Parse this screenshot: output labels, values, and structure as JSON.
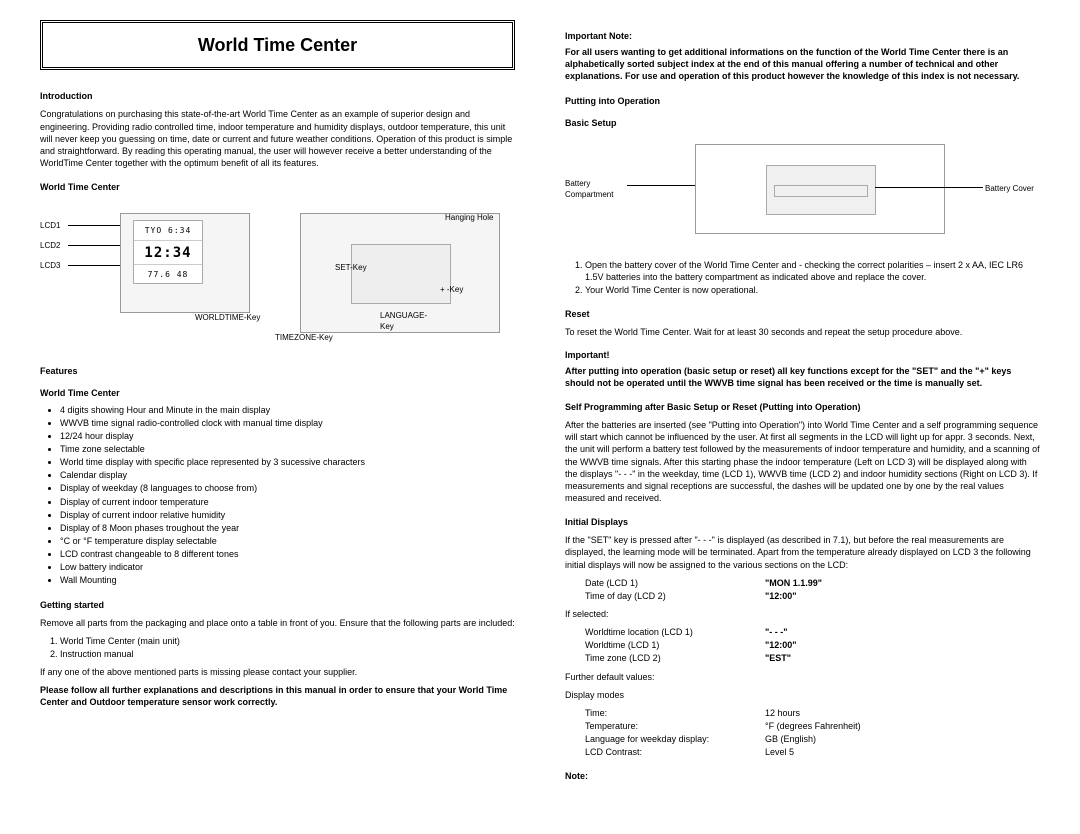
{
  "title": "World Time Center",
  "intro": {
    "h": "Introduction",
    "p": "Congratulations on purchasing this state-of-the-art World Time Center as an example of superior design and engineering. Providing radio controlled time, indoor temperature and humidity displays, outdoor temperature, this unit will never keep you guessing on time, date or current and future weather conditions. Operation of this product is simple and straightforward. By reading this operating manual, the user will however receive a better understanding of the WorldTime Center together with the optimum benefit of all its features."
  },
  "wtc_h": "World Time Center",
  "diagram": {
    "lcd1": "LCD1",
    "lcd2": "LCD2",
    "lcd3": "LCD3",
    "wtk": "WORLDTIME-Key",
    "tzk": "TIMEZONE-Key",
    "setk": "SET-Key",
    "langk": "LANGUAGE-\nKey",
    "plusk": "+ -Key",
    "hang": "Hanging Hole",
    "lcd_tyo": "TYO 6:34",
    "lcd_time": "12:34",
    "lcd_bot": "77.6  48"
  },
  "features": {
    "h": "Features",
    "sh": "World Time Center",
    "items": [
      "4 digits showing Hour and Minute in the main display",
      "WWVB time signal radio-controlled clock with manual time display",
      "12/24 hour display",
      "Time zone selectable",
      "World time display with specific place represented by 3 sucessive characters",
      "Calendar display",
      "Display of weekday (8 languages to choose from)",
      "Display of current indoor temperature",
      "Display of current indoor relative humidity",
      "Display of 8 Moon phases troughout the year",
      "°C or °F temperature display selectable",
      "LCD contrast changeable to 8 different tones",
      "Low battery indicator",
      "Wall Mounting"
    ]
  },
  "getting": {
    "h": "Getting started",
    "p1": "Remove all parts from the packaging and place onto a table in front of you. Ensure that the following parts are included:",
    "list": [
      "World Time Center (main unit)",
      "Instruction manual"
    ],
    "p2": "If any one of the above mentioned parts is missing please contact your supplier.",
    "p3": "Please follow all further explanations and descriptions in this manual in order to ensure that your World Time Center and Outdoor temperature sensor work correctly."
  },
  "impnote": {
    "h": "Important Note:",
    "p": "For all users wanting to get additional informations on the function of the World Time Center there is an alphabetically sorted subject index at the end of this manual offering a number of technical and other explanations. For use and operation of this product however the knowledge of this index is not necessary."
  },
  "putting": {
    "h": "Putting into Operation"
  },
  "basic": {
    "h": "Basic Setup",
    "bc_l": "Battery Compartment",
    "bc_r": "Battery Cover",
    "ol": [
      "Open the battery cover of the World Time Center and - checking the correct polarities – insert 2 x AA, IEC LR6 1.5V batteries into the battery compartment as indicated above and replace the cover.",
      "Your World Time Center is now operational."
    ]
  },
  "reset": {
    "h": "Reset",
    "p": "To reset the World Time Center. Wait for at least 30 seconds and repeat the setup procedure above."
  },
  "imp2": {
    "h": "Important!",
    "p": "After putting into operation (basic setup or reset) all key functions except for the \"SET\" and the \"+\" keys should not be operated until the WWVB time signal has been received or the time is manually set."
  },
  "selfprog": {
    "h": "Self Programming after Basic Setup or Reset (Putting into Operation)",
    "p": "After the batteries are inserted (see \"Putting into Operation\") into World Time Center and a self programming sequence will start which cannot be influenced by the user. At first all segments in the LCD will light up for appr. 3 seconds. Next, the unit will perform a battery test followed by the measurements of indoor temperature and humidity, and a scanning of the WWVB time signals. After this starting phase the indoor temperature (Left on LCD 3) will be displayed along with the displays \"- - -\" in the weekday, time (LCD 1), WWVB time (LCD 2) and indoor humidity sections (Right on LCD 3). If measurements and signal receptions are successful, the dashes will be updated one by one by the real values measured and received."
  },
  "initdisp": {
    "h": "Initial Displays",
    "p": "If the \"SET\" key is pressed after \"- - -\" is displayed (as described in 7.1), but before the real measurements are displayed, the learning mode will be terminated. Apart from the temperature already displayed on LCD 3 the following initial displays will now be assigned to the various sections on the LCD:",
    "rows1": [
      {
        "k": "Date (LCD 1)",
        "v": "\"MON 1.1.99\""
      },
      {
        "k": "Time of day (LCD 2)",
        "v": "\"12:00\""
      }
    ],
    "ifsel": "If selected:",
    "rows2": [
      {
        "k": "Worldtime location (LCD 1)",
        "v": "\"- - -\""
      },
      {
        "k": "Worldtime (LCD 1)",
        "v": "\"12:00\""
      },
      {
        "k": "Time zone (LCD 2)",
        "v": "\"EST\""
      }
    ],
    "fur": "Further default values:",
    "disp": "Display modes",
    "rows3": [
      {
        "k": "Time:",
        "v": "12 hours"
      },
      {
        "k": "Temperature:",
        "v": "°F (degrees Fahrenheit)"
      },
      {
        "k": "Language for weekday display:",
        "v": "GB (English)"
      },
      {
        "k": "LCD Contrast:",
        "v": "Level 5"
      }
    ]
  },
  "note": "Note:"
}
